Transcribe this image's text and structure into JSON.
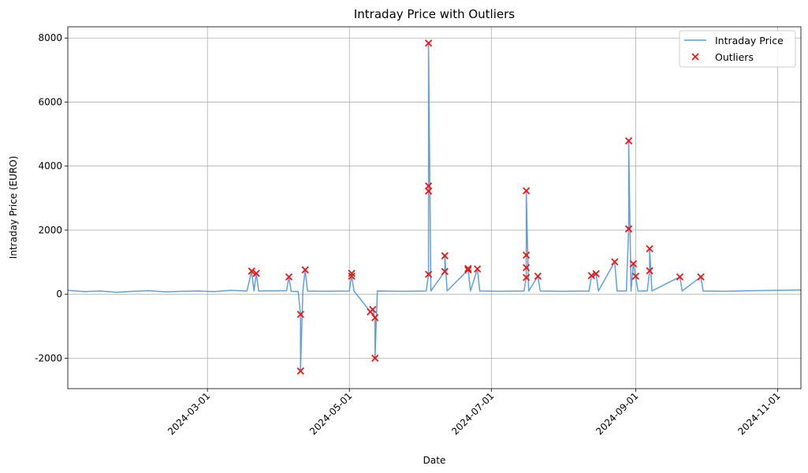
{
  "chart_data": {
    "type": "line",
    "title": "Intraday Price with Outliers",
    "xlabel": "Date",
    "ylabel": "Intraday Price (EURO)",
    "xlim": [
      "2024-01-01",
      "2024-11-11"
    ],
    "ylim": [
      -2950,
      8350
    ],
    "x_ticks": [
      "2024-03-01",
      "2024-05-01",
      "2024-07-01",
      "2024-09-01",
      "2024-11-01"
    ],
    "y_ticks": [
      -2000,
      0,
      2000,
      4000,
      6000,
      8000
    ],
    "grid": true,
    "legend": "top-right",
    "series": [
      {
        "name": "Intraday Price",
        "color": "#5b9bd5",
        "points": [
          [
            "2024-01-01",
            120
          ],
          [
            "2024-01-08",
            80
          ],
          [
            "2024-01-15",
            100
          ],
          [
            "2024-01-22",
            60
          ],
          [
            "2024-01-29",
            90
          ],
          [
            "2024-02-05",
            110
          ],
          [
            "2024-02-12",
            70
          ],
          [
            "2024-02-19",
            90
          ],
          [
            "2024-02-26",
            100
          ],
          [
            "2024-03-04",
            80
          ],
          [
            "2024-03-11",
            120
          ],
          [
            "2024-03-18",
            100
          ],
          [
            "2024-03-20",
            720
          ],
          [
            "2024-03-21",
            100
          ],
          [
            "2024-03-22",
            650
          ],
          [
            "2024-03-23",
            100
          ],
          [
            "2024-04-04",
            110
          ],
          [
            "2024-04-05",
            540
          ],
          [
            "2024-04-06",
            90
          ],
          [
            "2024-04-09",
            80
          ],
          [
            "2024-04-10",
            -630
          ],
          [
            "2024-04-10",
            -2400
          ],
          [
            "2024-04-11",
            100
          ],
          [
            "2024-04-12",
            760
          ],
          [
            "2024-04-13",
            100
          ],
          [
            "2024-04-20",
            90
          ],
          [
            "2024-05-01",
            100
          ],
          [
            "2024-05-02",
            650
          ],
          [
            "2024-05-02",
            560
          ],
          [
            "2024-05-03",
            100
          ],
          [
            "2024-05-10",
            -550
          ],
          [
            "2024-05-11",
            -480
          ],
          [
            "2024-05-12",
            -730
          ],
          [
            "2024-05-12",
            -2000
          ],
          [
            "2024-05-13",
            100
          ],
          [
            "2024-05-25",
            90
          ],
          [
            "2024-06-03",
            100
          ],
          [
            "2024-06-04",
            620
          ],
          [
            "2024-06-04",
            3220
          ],
          [
            "2024-06-04",
            3380
          ],
          [
            "2024-06-04",
            7840
          ],
          [
            "2024-06-05",
            100
          ],
          [
            "2024-06-11",
            710
          ],
          [
            "2024-06-11",
            1200
          ],
          [
            "2024-06-12",
            100
          ],
          [
            "2024-06-21",
            760
          ],
          [
            "2024-06-21",
            800
          ],
          [
            "2024-06-22",
            100
          ],
          [
            "2024-06-25",
            790
          ],
          [
            "2024-06-26",
            100
          ],
          [
            "2024-07-05",
            90
          ],
          [
            "2024-07-15",
            100
          ],
          [
            "2024-07-16",
            520
          ],
          [
            "2024-07-16",
            830
          ],
          [
            "2024-07-16",
            1220
          ],
          [
            "2024-07-16",
            3230
          ],
          [
            "2024-07-17",
            100
          ],
          [
            "2024-07-21",
            560
          ],
          [
            "2024-07-22",
            100
          ],
          [
            "2024-08-01",
            90
          ],
          [
            "2024-08-12",
            100
          ],
          [
            "2024-08-13",
            580
          ],
          [
            "2024-08-15",
            640
          ],
          [
            "2024-08-16",
            100
          ],
          [
            "2024-08-23",
            1010
          ],
          [
            "2024-08-24",
            100
          ],
          [
            "2024-08-28",
            100
          ],
          [
            "2024-08-29",
            2040
          ],
          [
            "2024-08-29",
            4790
          ],
          [
            "2024-08-30",
            100
          ],
          [
            "2024-08-31",
            950
          ],
          [
            "2024-09-01",
            560
          ],
          [
            "2024-09-02",
            100
          ],
          [
            "2024-09-06",
            100
          ],
          [
            "2024-09-07",
            730
          ],
          [
            "2024-09-07",
            1420
          ],
          [
            "2024-09-08",
            100
          ],
          [
            "2024-09-20",
            540
          ],
          [
            "2024-09-21",
            100
          ],
          [
            "2024-09-29",
            540
          ],
          [
            "2024-09-30",
            100
          ],
          [
            "2024-10-10",
            90
          ],
          [
            "2024-10-20",
            110
          ],
          [
            "2024-11-01",
            120
          ],
          [
            "2024-11-11",
            130
          ]
        ]
      },
      {
        "name": "Outliers",
        "color": "#e31a1c",
        "points": [
          [
            "2024-03-20",
            720
          ],
          [
            "2024-03-22",
            650
          ],
          [
            "2024-04-05",
            540
          ],
          [
            "2024-04-10",
            -630
          ],
          [
            "2024-04-10",
            -2400
          ],
          [
            "2024-04-12",
            760
          ],
          [
            "2024-05-02",
            650
          ],
          [
            "2024-05-02",
            560
          ],
          [
            "2024-05-10",
            -550
          ],
          [
            "2024-05-11",
            -480
          ],
          [
            "2024-05-12",
            -730
          ],
          [
            "2024-05-12",
            -2000
          ],
          [
            "2024-06-04",
            620
          ],
          [
            "2024-06-04",
            3220
          ],
          [
            "2024-06-04",
            3380
          ],
          [
            "2024-06-04",
            7840
          ],
          [
            "2024-06-11",
            710
          ],
          [
            "2024-06-11",
            1200
          ],
          [
            "2024-06-21",
            760
          ],
          [
            "2024-06-21",
            800
          ],
          [
            "2024-06-25",
            790
          ],
          [
            "2024-07-16",
            520
          ],
          [
            "2024-07-16",
            830
          ],
          [
            "2024-07-16",
            1220
          ],
          [
            "2024-07-16",
            3230
          ],
          [
            "2024-07-21",
            560
          ],
          [
            "2024-08-13",
            580
          ],
          [
            "2024-08-15",
            640
          ],
          [
            "2024-08-23",
            1010
          ],
          [
            "2024-08-29",
            2040
          ],
          [
            "2024-08-29",
            4790
          ],
          [
            "2024-08-31",
            950
          ],
          [
            "2024-09-01",
            560
          ],
          [
            "2024-09-07",
            730
          ],
          [
            "2024-09-07",
            1420
          ],
          [
            "2024-09-20",
            540
          ],
          [
            "2024-09-29",
            540
          ]
        ]
      }
    ]
  }
}
